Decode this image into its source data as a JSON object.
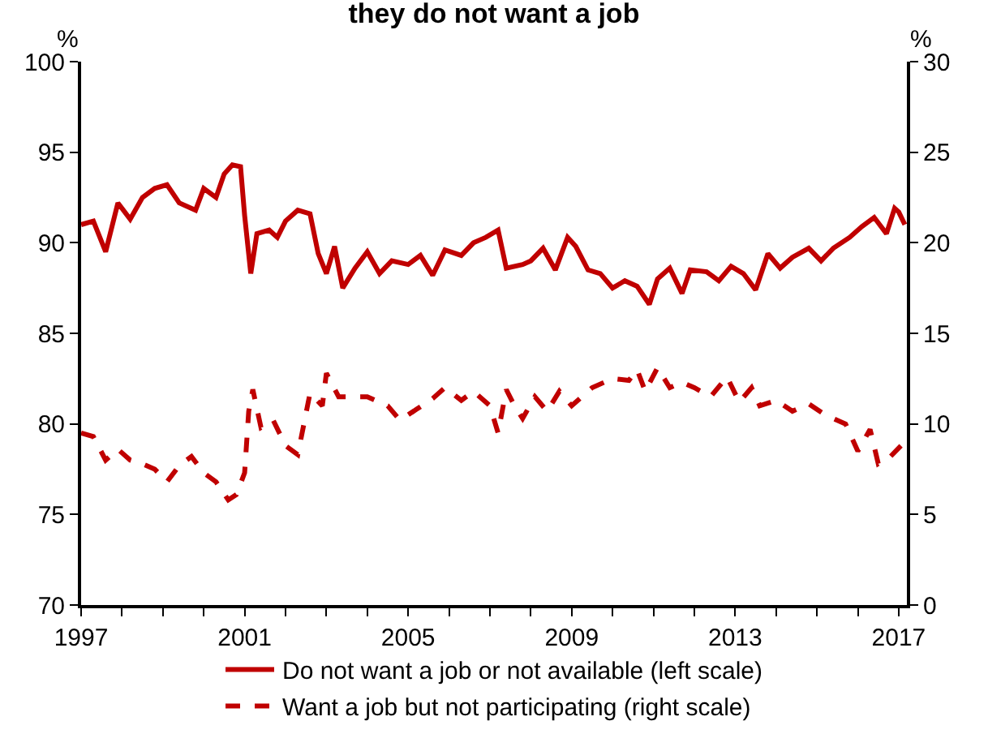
{
  "chart_data": {
    "type": "line",
    "title": "they do not want a job",
    "ylabel": "%",
    "y2label": "%",
    "legend": "bottom",
    "marker": "none",
    "xlim": [
      1997,
      2017.2
    ],
    "xticks": [
      1997,
      {
        "value": 1998,
        "label": null
      },
      {
        "value": 1999,
        "label": null
      },
      {
        "value": 2000,
        "label": null
      },
      2001,
      {
        "value": 2002,
        "label": null
      },
      {
        "value": 2003,
        "label": null
      },
      {
        "value": 2004,
        "label": null
      },
      2005,
      {
        "value": 2006,
        "label": null
      },
      {
        "value": 2007,
        "label": null
      },
      {
        "value": 2008,
        "label": null
      },
      2009,
      {
        "value": 2010,
        "label": null
      },
      {
        "value": 2011,
        "label": null
      },
      {
        "value": 2012,
        "label": null
      },
      2013,
      {
        "value": 2014,
        "label": null
      },
      {
        "value": 2015,
        "label": null
      },
      {
        "value": 2016,
        "label": null
      },
      2017
    ],
    "ylim": [
      70,
      100
    ],
    "yticks": [
      70,
      75,
      80,
      85,
      90,
      95,
      100
    ],
    "y2lim": [
      0,
      30
    ],
    "y2ticks": [
      0,
      5,
      10,
      15,
      20,
      25,
      30
    ],
    "series": [
      {
        "name": "Do not want a job or not available (left scale)",
        "color": "#c00000",
        "line_style": "solid",
        "x": [
          1997.0,
          1997.3,
          1997.6,
          1997.9,
          1998.2,
          1998.5,
          1998.8,
          1999.1,
          1999.4,
          1999.8,
          2000.0,
          2000.3,
          2000.5,
          2000.7,
          2000.9,
          2001.0,
          2001.15,
          2001.3,
          2001.6,
          2001.8,
          2002.0,
          2002.3,
          2002.6,
          2002.8,
          2003.0,
          2003.2,
          2003.4,
          2003.7,
          2004.0,
          2004.3,
          2004.6,
          2005.0,
          2005.3,
          2005.6,
          2005.9,
          2006.3,
          2006.6,
          2006.9,
          2007.2,
          2007.4,
          2007.8,
          2008.0,
          2008.3,
          2008.6,
          2008.9,
          2009.1,
          2009.4,
          2009.7,
          2010.0,
          2010.3,
          2010.6,
          2010.9,
          2011.1,
          2011.4,
          2011.7,
          2011.9,
          2012.3,
          2012.6,
          2012.9,
          2013.2,
          2013.5,
          2013.8,
          2014.1,
          2014.4,
          2014.8,
          2015.1,
          2015.4,
          2015.8,
          2016.1,
          2016.4,
          2016.7,
          2016.9,
          2017.0,
          2017.15
        ],
        "values": [
          91.0,
          91.2,
          89.5,
          92.2,
          91.3,
          92.5,
          93.0,
          93.2,
          92.2,
          91.8,
          93.0,
          92.5,
          93.8,
          94.3,
          94.2,
          91.5,
          88.3,
          90.5,
          90.7,
          90.3,
          91.2,
          91.8,
          91.6,
          89.4,
          88.3,
          89.8,
          87.5,
          88.6,
          89.5,
          88.3,
          89.0,
          88.8,
          89.3,
          88.2,
          89.6,
          89.3,
          90.0,
          90.3,
          90.7,
          88.6,
          88.8,
          89.0,
          89.7,
          88.5,
          90.3,
          89.8,
          88.5,
          88.3,
          87.5,
          87.9,
          87.6,
          86.6,
          88.0,
          88.6,
          87.2,
          88.5,
          88.4,
          87.9,
          88.7,
          88.3,
          87.4,
          89.4,
          88.6,
          89.2,
          89.7,
          89.0,
          89.7,
          90.3,
          90.9,
          91.4,
          90.5,
          91.9,
          91.7,
          91.0
        ]
      },
      {
        "name": "Want a job but not participating (right scale)",
        "color": "#c00000",
        "line_style": "dashed",
        "axis": "y2",
        "x": [
          1997.0,
          1997.3,
          1997.6,
          1997.9,
          1998.2,
          1998.5,
          1998.8,
          1999.1,
          1999.4,
          1999.7,
          2000.0,
          2000.3,
          2000.6,
          2000.8,
          2001.0,
          2001.1,
          2001.2,
          2001.4,
          2001.7,
          2002.0,
          2002.3,
          2002.6,
          2002.9,
          2003.0,
          2003.3,
          2003.6,
          2004.0,
          2004.5,
          2004.8,
          2005.2,
          2005.6,
          2005.9,
          2006.3,
          2006.6,
          2007.0,
          2007.2,
          2007.4,
          2007.6,
          2007.8,
          2008.1,
          2008.4,
          2008.7,
          2009.0,
          2009.5,
          2010.0,
          2010.4,
          2010.6,
          2010.8,
          2011.1,
          2011.4,
          2011.7,
          2012.0,
          2012.4,
          2012.8,
          2013.1,
          2013.4,
          2013.6,
          2014.0,
          2014.4,
          2014.8,
          2015.2,
          2015.7,
          2016.0,
          2016.3,
          2016.5,
          2016.8,
          2017.1
        ],
        "values": [
          9.5,
          9.3,
          8.0,
          8.6,
          8.0,
          7.8,
          7.5,
          6.8,
          7.7,
          8.2,
          7.3,
          6.8,
          5.8,
          6.1,
          7.3,
          10.7,
          11.9,
          9.8,
          10.2,
          8.8,
          8.3,
          11.7,
          11.0,
          12.8,
          11.5,
          11.5,
          11.5,
          11.0,
          10.2,
          10.8,
          11.4,
          12.0,
          11.3,
          11.8,
          11.0,
          9.5,
          11.9,
          11.0,
          10.3,
          11.5,
          10.7,
          11.8,
          11.0,
          12.0,
          12.5,
          12.4,
          13.0,
          11.8,
          13.1,
          12.0,
          12.3,
          12.0,
          11.5,
          12.6,
          11.2,
          12.0,
          11.0,
          11.3,
          10.7,
          11.1,
          10.5,
          10.0,
          8.5,
          9.7,
          7.8,
          8.2,
          8.9
        ]
      }
    ]
  }
}
